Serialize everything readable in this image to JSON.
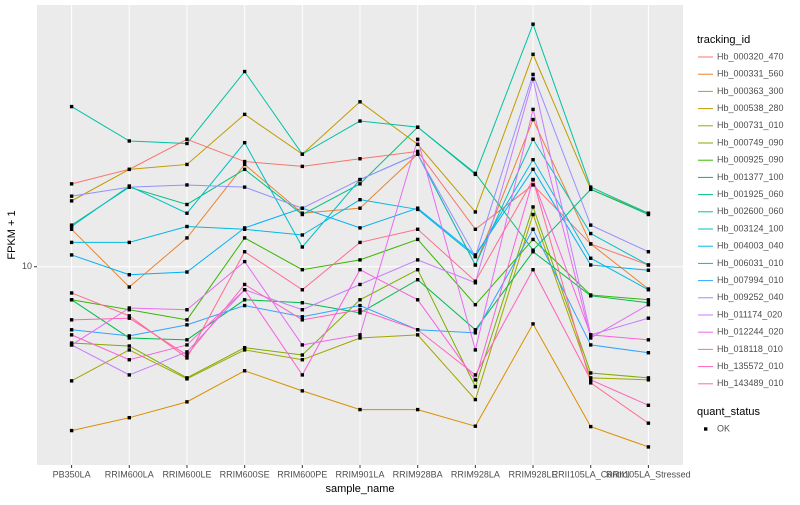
{
  "chart_data": {
    "type": "line",
    "x_label": "sample_name",
    "y_label": "FPKM + 1",
    "categories": [
      "PB350LA",
      "RRIM600LA",
      "RRIM600LE",
      "RRIM600SE",
      "RRIM600PE",
      "RRIM901LA",
      "RRIM928BA",
      "RRIM928LA",
      "RRIM928LE",
      "RRII105LA_Control",
      "RRII105LA_Stressed"
    ],
    "log_scale": true,
    "ylim": [
      3.2,
      45
    ],
    "yticks": [
      10
    ],
    "grid": true,
    "legend_title": "tracking_id",
    "legend_position": "right",
    "shape_legend": {
      "title": "quant_status",
      "labels": [
        "OK"
      ]
    },
    "point_color": "#000000",
    "panel_color": "#EBEBEB",
    "series": [
      {
        "name": "Hb_000320_470",
        "color": "#F8766D",
        "values": [
          16.1,
          17.5,
          20.8,
          18.3,
          17.8,
          18.6,
          19.4,
          12.4,
          16.0,
          11.4,
          10.1
        ]
      },
      {
        "name": "Hb_000331_560",
        "color": "#EA8331",
        "values": [
          12.4,
          8.9,
          11.8,
          18.0,
          13.6,
          14.0,
          19.1,
          10.1,
          23.3,
          11.4,
          8.8
        ]
      },
      {
        "name": "Hb_000363_300",
        "color": "#D89000",
        "values": [
          3.9,
          4.2,
          4.6,
          5.5,
          4.9,
          4.4,
          4.4,
          4.0,
          7.2,
          3.99,
          3.55
        ]
      },
      {
        "name": "Hb_000538_280",
        "color": "#C09B00",
        "values": [
          14.6,
          17.5,
          18.0,
          24.0,
          19.1,
          25.8,
          20.2,
          13.7,
          33.9,
          15.6,
          13.6
        ]
      },
      {
        "name": "Hb_000731_010",
        "color": "#A3A500",
        "values": [
          5.19,
          6.2,
          5.25,
          6.2,
          5.86,
          6.64,
          6.76,
          4.66,
          13.5,
          5.28,
          5.22
        ]
      },
      {
        "name": "Hb_000749_090",
        "color": "#7CAE00",
        "values": [
          6.45,
          6.34,
          5.28,
          6.28,
          6.02,
          8.27,
          9.83,
          5.02,
          14.1,
          5.43,
          5.28
        ]
      },
      {
        "name": "Hb_000925_090",
        "color": "#39B600",
        "values": [
          8.27,
          7.81,
          7.37,
          11.8,
          9.83,
          10.4,
          11.7,
          8.04,
          11.7,
          8.5,
          8.27
        ]
      },
      {
        "name": "Hb_001377_100",
        "color": "#00BB4E",
        "values": [
          8.27,
          6.64,
          6.57,
          8.27,
          8.13,
          7.67,
          9.28,
          6.96,
          10.9,
          8.46,
          8.13
        ]
      },
      {
        "name": "Hb_001925_060",
        "color": "#00BF7D",
        "values": [
          12.7,
          15.8,
          14.3,
          17.5,
          13.5,
          16.1,
          22.3,
          17.1,
          11.0,
          15.6,
          13.5
        ]
      },
      {
        "name": "Hb_002600_060",
        "color": "#00C1A3",
        "values": [
          25.1,
          20.6,
          20.3,
          30.7,
          19.1,
          23.1,
          22.3,
          17.0,
          40.3,
          15.8,
          13.6
        ]
      },
      {
        "name": "Hb_003124_100",
        "color": "#00BFC4",
        "values": [
          12.6,
          15.9,
          13.6,
          20.4,
          11.2,
          16.5,
          19.1,
          10.1,
          20.8,
          12.1,
          10.1
        ]
      },
      {
        "name": "Hb_004003_040",
        "color": "#00BAE0",
        "values": [
          11.5,
          11.5,
          12.6,
          12.4,
          12.0,
          14.7,
          13.9,
          10.6,
          18.5,
          10.5,
          8.76
        ]
      },
      {
        "name": "Hb_006031_010",
        "color": "#00B0F6",
        "values": [
          10.7,
          9.55,
          9.7,
          12.5,
          14.0,
          12.5,
          14.0,
          10.7,
          17.5,
          10.1,
          9.8
        ]
      },
      {
        "name": "Hb_007994_010",
        "color": "#35A2FF",
        "values": [
          6.96,
          6.72,
          7.16,
          8.0,
          7.5,
          8.0,
          6.96,
          6.84,
          12.4,
          6.38,
          6.1
        ]
      },
      {
        "name": "Hb_009252_040",
        "color": "#9590FF",
        "values": [
          15.0,
          15.8,
          16.0,
          15.8,
          14.0,
          16.5,
          19.1,
          10.6,
          30.2,
          12.7,
          10.9
        ]
      },
      {
        "name": "Hb_011174_020",
        "color": "#C77CFF",
        "values": [
          6.38,
          5.37,
          6.13,
          8.76,
          7.81,
          9.03,
          10.4,
          9.12,
          29.4,
          6.76,
          7.44
        ]
      },
      {
        "name": "Hb_012244_020",
        "color": "#E76BF3",
        "values": [
          6.38,
          7.89,
          7.81,
          10.3,
          6.38,
          6.76,
          20.8,
          6.2,
          24.7,
          6.64,
          8.04
        ]
      },
      {
        "name": "Hb_018118_010",
        "color": "#FA62DB",
        "values": [
          6.76,
          5.86,
          6.38,
          8.76,
          5.37,
          9.83,
          8.27,
          5.22,
          16.5,
          6.76,
          6.57
        ]
      },
      {
        "name": "Hb_135572_010",
        "color": "#FF62BC",
        "values": [
          7.37,
          7.44,
          6.02,
          9.03,
          7.37,
          7.81,
          6.96,
          5.37,
          9.83,
          5.22,
          4.51
        ]
      },
      {
        "name": "Hb_143489_010",
        "color": "#FF6C91",
        "values": [
          8.6,
          7.54,
          5.92,
          10.9,
          8.76,
          11.5,
          12.4,
          9.2,
          16.5,
          5.13,
          4.07
        ]
      }
    ]
  }
}
